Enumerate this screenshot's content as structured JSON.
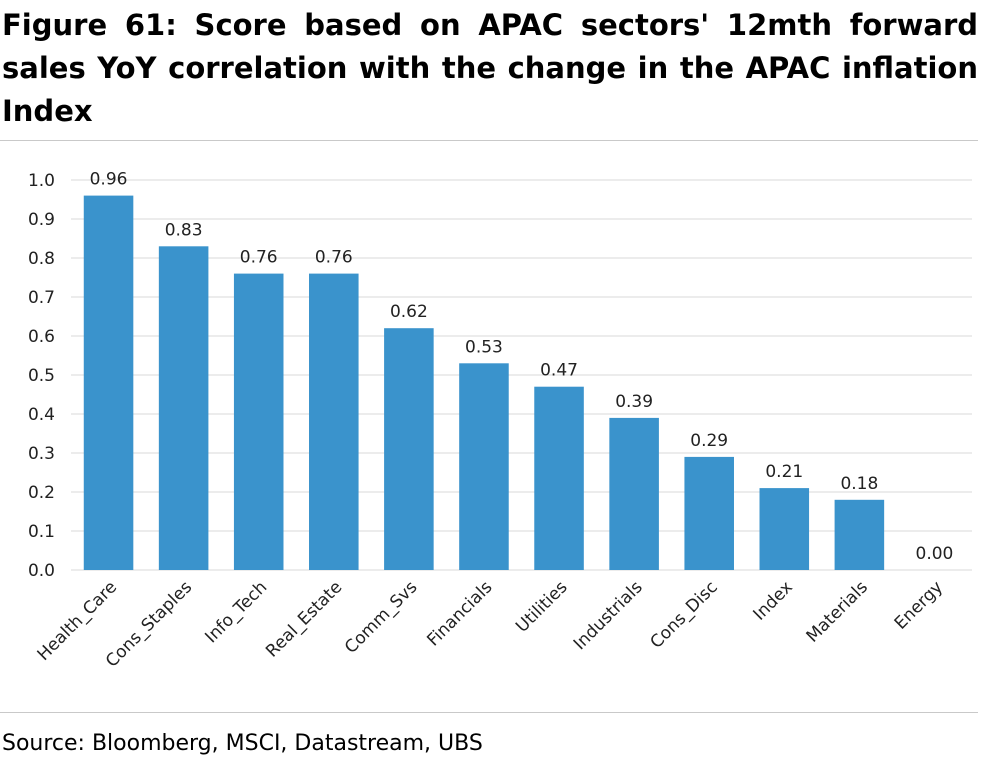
{
  "figure": {
    "title": "Figure 61: Score based on APAC sectors' 12mth forward sales YoY correlation with the change in the APAC inflation Index",
    "source": "Source: Bloomberg, MSCI, Datastream, UBS"
  },
  "chart_data": {
    "type": "bar",
    "title": "",
    "xlabel": "",
    "ylabel": "",
    "categories": [
      "Health_Care",
      "Cons_Staples",
      "Info_Tech",
      "Real_Estate",
      "Comm_Svs",
      "Financials",
      "Utilities",
      "Industrials",
      "Cons_Disc",
      "Index",
      "Materials",
      "Energy"
    ],
    "values": [
      0.96,
      0.83,
      0.76,
      0.76,
      0.62,
      0.53,
      0.47,
      0.39,
      0.29,
      0.21,
      0.18,
      0.0
    ],
    "data_labels": [
      "0.96",
      "0.83",
      "0.76",
      "0.76",
      "0.62",
      "0.53",
      "0.47",
      "0.39",
      "0.29",
      "0.21",
      "0.18",
      "0.00"
    ],
    "ylim": [
      0,
      1.0
    ],
    "yticks": [
      "0.0",
      "0.1",
      "0.2",
      "0.3",
      "0.4",
      "0.5",
      "0.6",
      "0.7",
      "0.8",
      "0.9",
      "1.0"
    ],
    "grid": true,
    "legend": "none",
    "bar_color": "#3a93cc",
    "grid_color": "#d9d9d9"
  }
}
